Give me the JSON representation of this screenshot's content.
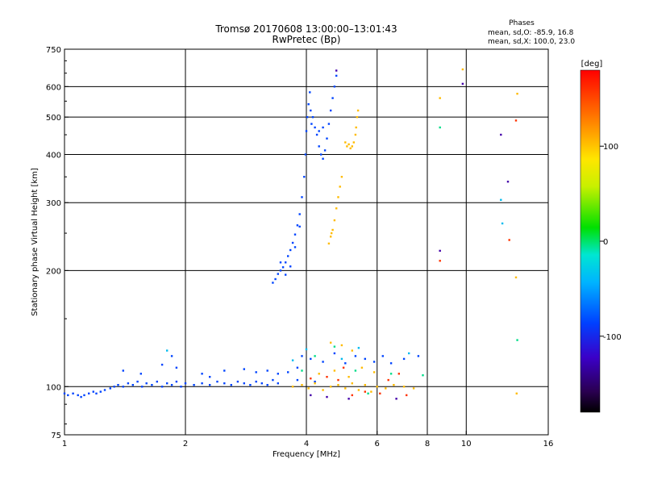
{
  "chart_data": {
    "type": "scatter",
    "title_line1": "Tromsø 20170608 13:00:00–13:01:43",
    "title_line2": "RwPretec (Bp)",
    "stats": {
      "title": "Phases",
      "line1": "mean, sd,O: -85.9, 16.8",
      "line2": "mean, sd,X: 100.0, 23.0"
    },
    "xlabel": "Frequency [MHz]",
    "ylabel": "Stationary phase Virtual Height [km]",
    "x_scale": "log",
    "y_scale": "log",
    "xlim": [
      1,
      16
    ],
    "ylim": [
      75,
      750
    ],
    "x_ticks": [
      1,
      2,
      4,
      6,
      8,
      10,
      16
    ],
    "x_tick_labels": [
      "1",
      "2",
      "4",
      "6",
      "8",
      "10",
      "16"
    ],
    "y_ticks": [
      75,
      100,
      200,
      300,
      400,
      500,
      600,
      750
    ],
    "y_tick_labels": [
      "75",
      "100",
      "200",
      "300",
      "400",
      "500",
      "600",
      "750"
    ],
    "grid": true,
    "colorbar": {
      "label": "[deg]",
      "range": [
        -180,
        180
      ],
      "ticks": [
        100,
        0,
        -100
      ],
      "tick_labels": [
        "100",
        "0",
        "-100"
      ]
    },
    "series": [
      {
        "mode": "O",
        "color": "#0044ff",
        "phase_deg": -86,
        "points": [
          [
            1.0,
            96
          ],
          [
            1.02,
            95
          ],
          [
            1.05,
            96
          ],
          [
            1.08,
            95
          ],
          [
            1.1,
            94
          ],
          [
            1.12,
            95
          ],
          [
            1.15,
            96
          ],
          [
            1.18,
            97
          ],
          [
            1.2,
            96
          ],
          [
            1.23,
            97
          ],
          [
            1.26,
            98
          ],
          [
            1.3,
            99
          ],
          [
            1.33,
            100
          ],
          [
            1.36,
            101
          ],
          [
            1.4,
            100
          ],
          [
            1.44,
            102
          ],
          [
            1.48,
            101
          ],
          [
            1.52,
            103
          ],
          [
            1.56,
            100
          ],
          [
            1.6,
            102
          ],
          [
            1.65,
            101
          ],
          [
            1.7,
            103
          ],
          [
            1.75,
            100
          ],
          [
            1.8,
            102
          ],
          [
            1.85,
            101
          ],
          [
            1.9,
            103
          ],
          [
            1.95,
            100
          ],
          [
            2.0,
            102
          ],
          [
            2.1,
            101
          ],
          [
            2.2,
            102
          ],
          [
            2.3,
            101
          ],
          [
            2.4,
            103
          ],
          [
            2.5,
            102
          ],
          [
            2.6,
            101
          ],
          [
            2.7,
            103
          ],
          [
            2.8,
            102
          ],
          [
            2.9,
            101
          ],
          [
            3.0,
            103
          ],
          [
            3.1,
            102
          ],
          [
            3.2,
            101
          ],
          [
            3.3,
            104
          ],
          [
            3.4,
            102
          ],
          [
            1.4,
            110
          ],
          [
            1.55,
            108
          ],
          [
            1.75,
            114
          ],
          [
            1.9,
            112
          ],
          [
            2.2,
            108
          ],
          [
            2.5,
            110
          ],
          [
            2.8,
            111
          ],
          [
            3.0,
            109
          ],
          [
            3.2,
            110
          ],
          [
            3.4,
            108
          ],
          [
            3.6,
            109
          ],
          [
            3.8,
            112
          ],
          [
            1.85,
            120
          ],
          [
            2.3,
            106
          ],
          [
            3.3,
            186
          ],
          [
            3.35,
            190
          ],
          [
            3.4,
            196
          ],
          [
            3.45,
            200
          ],
          [
            3.5,
            204
          ],
          [
            3.55,
            210
          ],
          [
            3.6,
            218
          ],
          [
            3.65,
            226
          ],
          [
            3.7,
            236
          ],
          [
            3.75,
            248
          ],
          [
            3.8,
            262
          ],
          [
            3.85,
            280
          ],
          [
            3.9,
            310
          ],
          [
            3.95,
            350
          ],
          [
            3.98,
            400
          ],
          [
            4.0,
            460
          ],
          [
            4.02,
            500
          ],
          [
            4.05,
            540
          ],
          [
            4.08,
            580
          ],
          [
            4.1,
            520
          ],
          [
            4.12,
            480
          ],
          [
            4.15,
            500
          ],
          [
            4.2,
            470
          ],
          [
            4.25,
            450
          ],
          [
            4.3,
            420
          ],
          [
            4.35,
            400
          ],
          [
            4.4,
            390
          ],
          [
            4.45,
            410
          ],
          [
            4.5,
            440
          ],
          [
            4.55,
            480
          ],
          [
            4.6,
            520
          ],
          [
            4.65,
            560
          ],
          [
            4.7,
            600
          ],
          [
            4.75,
            640
          ],
          [
            3.45,
            210
          ],
          [
            3.55,
            195
          ],
          [
            3.65,
            205
          ],
          [
            3.75,
            230
          ],
          [
            3.85,
            260
          ],
          [
            4.3,
            460
          ],
          [
            4.4,
            470
          ],
          [
            3.9,
            120
          ],
          [
            4.1,
            118
          ],
          [
            4.4,
            116
          ],
          [
            4.7,
            122
          ],
          [
            5.0,
            115
          ],
          [
            5.3,
            120
          ],
          [
            5.6,
            118
          ],
          [
            5.9,
            116
          ],
          [
            6.2,
            120
          ],
          [
            6.5,
            115
          ],
          [
            7.0,
            118
          ],
          [
            7.6,
            120
          ],
          [
            3.8,
            104
          ],
          [
            4.2,
            103
          ]
        ]
      },
      {
        "mode": "X",
        "color": "#ffbb00",
        "phase_deg": 100,
        "points": [
          [
            3.7,
            100
          ],
          [
            3.9,
            101
          ],
          [
            4.05,
            99
          ],
          [
            4.2,
            102
          ],
          [
            4.4,
            98
          ],
          [
            4.6,
            100
          ],
          [
            4.8,
            101
          ],
          [
            5.0,
            99
          ],
          [
            5.2,
            102
          ],
          [
            5.4,
            98
          ],
          [
            5.6,
            101
          ],
          [
            5.8,
            97
          ],
          [
            6.0,
            100
          ],
          [
            6.3,
            99
          ],
          [
            6.6,
            101
          ],
          [
            7.0,
            100
          ],
          [
            7.4,
            99
          ],
          [
            4.3,
            108
          ],
          [
            4.7,
            110
          ],
          [
            5.1,
            106
          ],
          [
            5.5,
            112
          ],
          [
            5.9,
            109
          ],
          [
            4.6,
            130
          ],
          [
            4.9,
            128
          ],
          [
            5.2,
            124
          ],
          [
            4.55,
            235
          ],
          [
            4.6,
            245
          ],
          [
            4.65,
            255
          ],
          [
            4.7,
            270
          ],
          [
            4.75,
            290
          ],
          [
            4.8,
            310
          ],
          [
            4.85,
            330
          ],
          [
            4.9,
            350
          ],
          [
            4.62,
            250
          ],
          [
            5.0,
            430
          ],
          [
            5.05,
            420
          ],
          [
            5.1,
            425
          ],
          [
            5.15,
            415
          ],
          [
            5.2,
            420
          ],
          [
            5.25,
            430
          ],
          [
            5.3,
            450
          ],
          [
            5.32,
            470
          ],
          [
            5.35,
            500
          ],
          [
            5.38,
            520
          ],
          [
            8.6,
            560
          ],
          [
            9.8,
            665
          ],
          [
            13.4,
            575
          ],
          [
            13.3,
            192
          ],
          [
            13.35,
            96
          ]
        ]
      },
      {
        "mode": "sporadic",
        "color": "#ff3300",
        "phase_deg": 150,
        "points": [
          [
            4.1,
            105
          ],
          [
            4.5,
            106
          ],
          [
            4.8,
            104
          ],
          [
            5.2,
            95
          ],
          [
            5.6,
            97
          ],
          [
            6.1,
            96
          ],
          [
            6.4,
            104
          ],
          [
            7.1,
            95
          ],
          [
            8.6,
            212
          ],
          [
            12.8,
            240
          ],
          [
            13.3,
            490
          ],
          [
            4.95,
            112
          ],
          [
            6.8,
            108
          ]
        ]
      },
      {
        "mode": "sporadic",
        "color": "#00dd88",
        "phase_deg": 20,
        "points": [
          [
            4.2,
            120
          ],
          [
            4.7,
            127
          ],
          [
            5.3,
            110
          ],
          [
            5.7,
            96
          ],
          [
            6.5,
            108
          ],
          [
            7.8,
            107
          ],
          [
            8.6,
            470
          ],
          [
            3.9,
            110
          ],
          [
            13.4,
            132
          ]
        ]
      },
      {
        "mode": "sporadic",
        "color": "#00bbee",
        "phase_deg": -40,
        "points": [
          [
            1.8,
            124
          ],
          [
            3.7,
            117
          ],
          [
            4.0,
            125
          ],
          [
            4.9,
            118
          ],
          [
            5.4,
            126
          ],
          [
            7.2,
            122
          ],
          [
            12.2,
            305
          ],
          [
            12.3,
            265
          ]
        ]
      },
      {
        "mode": "sporadic",
        "color": "#4400aa",
        "phase_deg": -130,
        "points": [
          [
            4.1,
            95
          ],
          [
            4.5,
            94
          ],
          [
            5.1,
            93
          ],
          [
            6.7,
            93
          ],
          [
            9.8,
            610
          ],
          [
            12.7,
            340
          ],
          [
            12.2,
            450
          ],
          [
            8.6,
            225
          ],
          [
            4.75,
            660
          ]
        ]
      }
    ]
  }
}
